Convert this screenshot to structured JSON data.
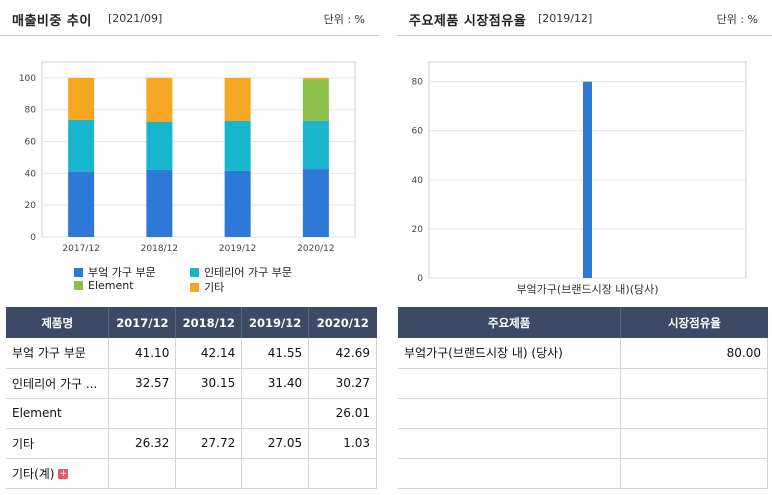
{
  "left_panel": {
    "title": "매출비중 추이",
    "period": "[2021/09]",
    "unit": "단위 : %",
    "legend": [
      {
        "label": "부엌 가구 부문",
        "color": "#2e78d8"
      },
      {
        "label": "인테리어 가구 부문",
        "color": "#18b6cc"
      },
      {
        "label": "Element",
        "color": "#8dbf4d"
      },
      {
        "label": "기타",
        "color": "#f5a623"
      }
    ],
    "table": {
      "header_label": "제품명",
      "years": [
        "2017/12",
        "2018/12",
        "2019/12",
        "2020/12"
      ],
      "rows": [
        {
          "name": "부엌 가구 부문",
          "values": [
            "41.10",
            "42.14",
            "41.55",
            "42.69"
          ]
        },
        {
          "name": "인테리어 가구 ...",
          "values": [
            "32.57",
            "30.15",
            "31.40",
            "30.27"
          ]
        },
        {
          "name": "Element",
          "values": [
            "",
            "",
            "",
            "26.01"
          ]
        },
        {
          "name": "기타",
          "values": [
            "26.32",
            "27.72",
            "27.05",
            "1.03"
          ]
        },
        {
          "name": "기타(계)",
          "values": [
            "",
            "",
            "",
            ""
          ],
          "expandable": true
        }
      ],
      "plus_glyph": "+"
    }
  },
  "right_panel": {
    "title": "주요제품 시장점유율",
    "period": "[2019/12]",
    "unit": "단위 : %",
    "table": {
      "headers": [
        "주요제품",
        "시장점유율"
      ],
      "rows": [
        {
          "product": "부엌가구(브랜드시장 내) (당사)",
          "share": "80.00"
        },
        {
          "product": "",
          "share": ""
        },
        {
          "product": "",
          "share": ""
        },
        {
          "product": "",
          "share": ""
        },
        {
          "product": "",
          "share": ""
        }
      ]
    }
  },
  "chart_data": [
    {
      "type": "bar",
      "stacked": true,
      "title": "매출비중 추이",
      "categories": [
        "2017/12",
        "2018/12",
        "2019/12",
        "2020/12"
      ],
      "series": [
        {
          "name": "부엌 가구 부문",
          "color": "#2e78d8",
          "values": [
            41.1,
            42.14,
            41.55,
            42.69
          ]
        },
        {
          "name": "인테리어 가구 부문",
          "color": "#18b6cc",
          "values": [
            32.57,
            30.15,
            31.4,
            30.27
          ]
        },
        {
          "name": "Element",
          "color": "#8dbf4d",
          "values": [
            0,
            0,
            0,
            26.01
          ]
        },
        {
          "name": "기타",
          "color": "#f5a623",
          "values": [
            26.32,
            27.72,
            27.05,
            1.03
          ]
        }
      ],
      "yticks": [
        0,
        20,
        40,
        60,
        80,
        100
      ],
      "ylim": [
        0,
        110
      ],
      "xlabel": "",
      "ylabel": "",
      "grid": true
    },
    {
      "type": "bar",
      "title": "주요제품 시장점유율",
      "categories": [
        "부엌가구(브랜드시장 내)(당사)"
      ],
      "values": [
        80.0
      ],
      "color": "#2e78d8",
      "yticks": [
        0,
        20,
        40,
        60,
        80
      ],
      "ylim": [
        0,
        88
      ],
      "xlabel": "",
      "ylabel": "",
      "grid": true
    }
  ]
}
